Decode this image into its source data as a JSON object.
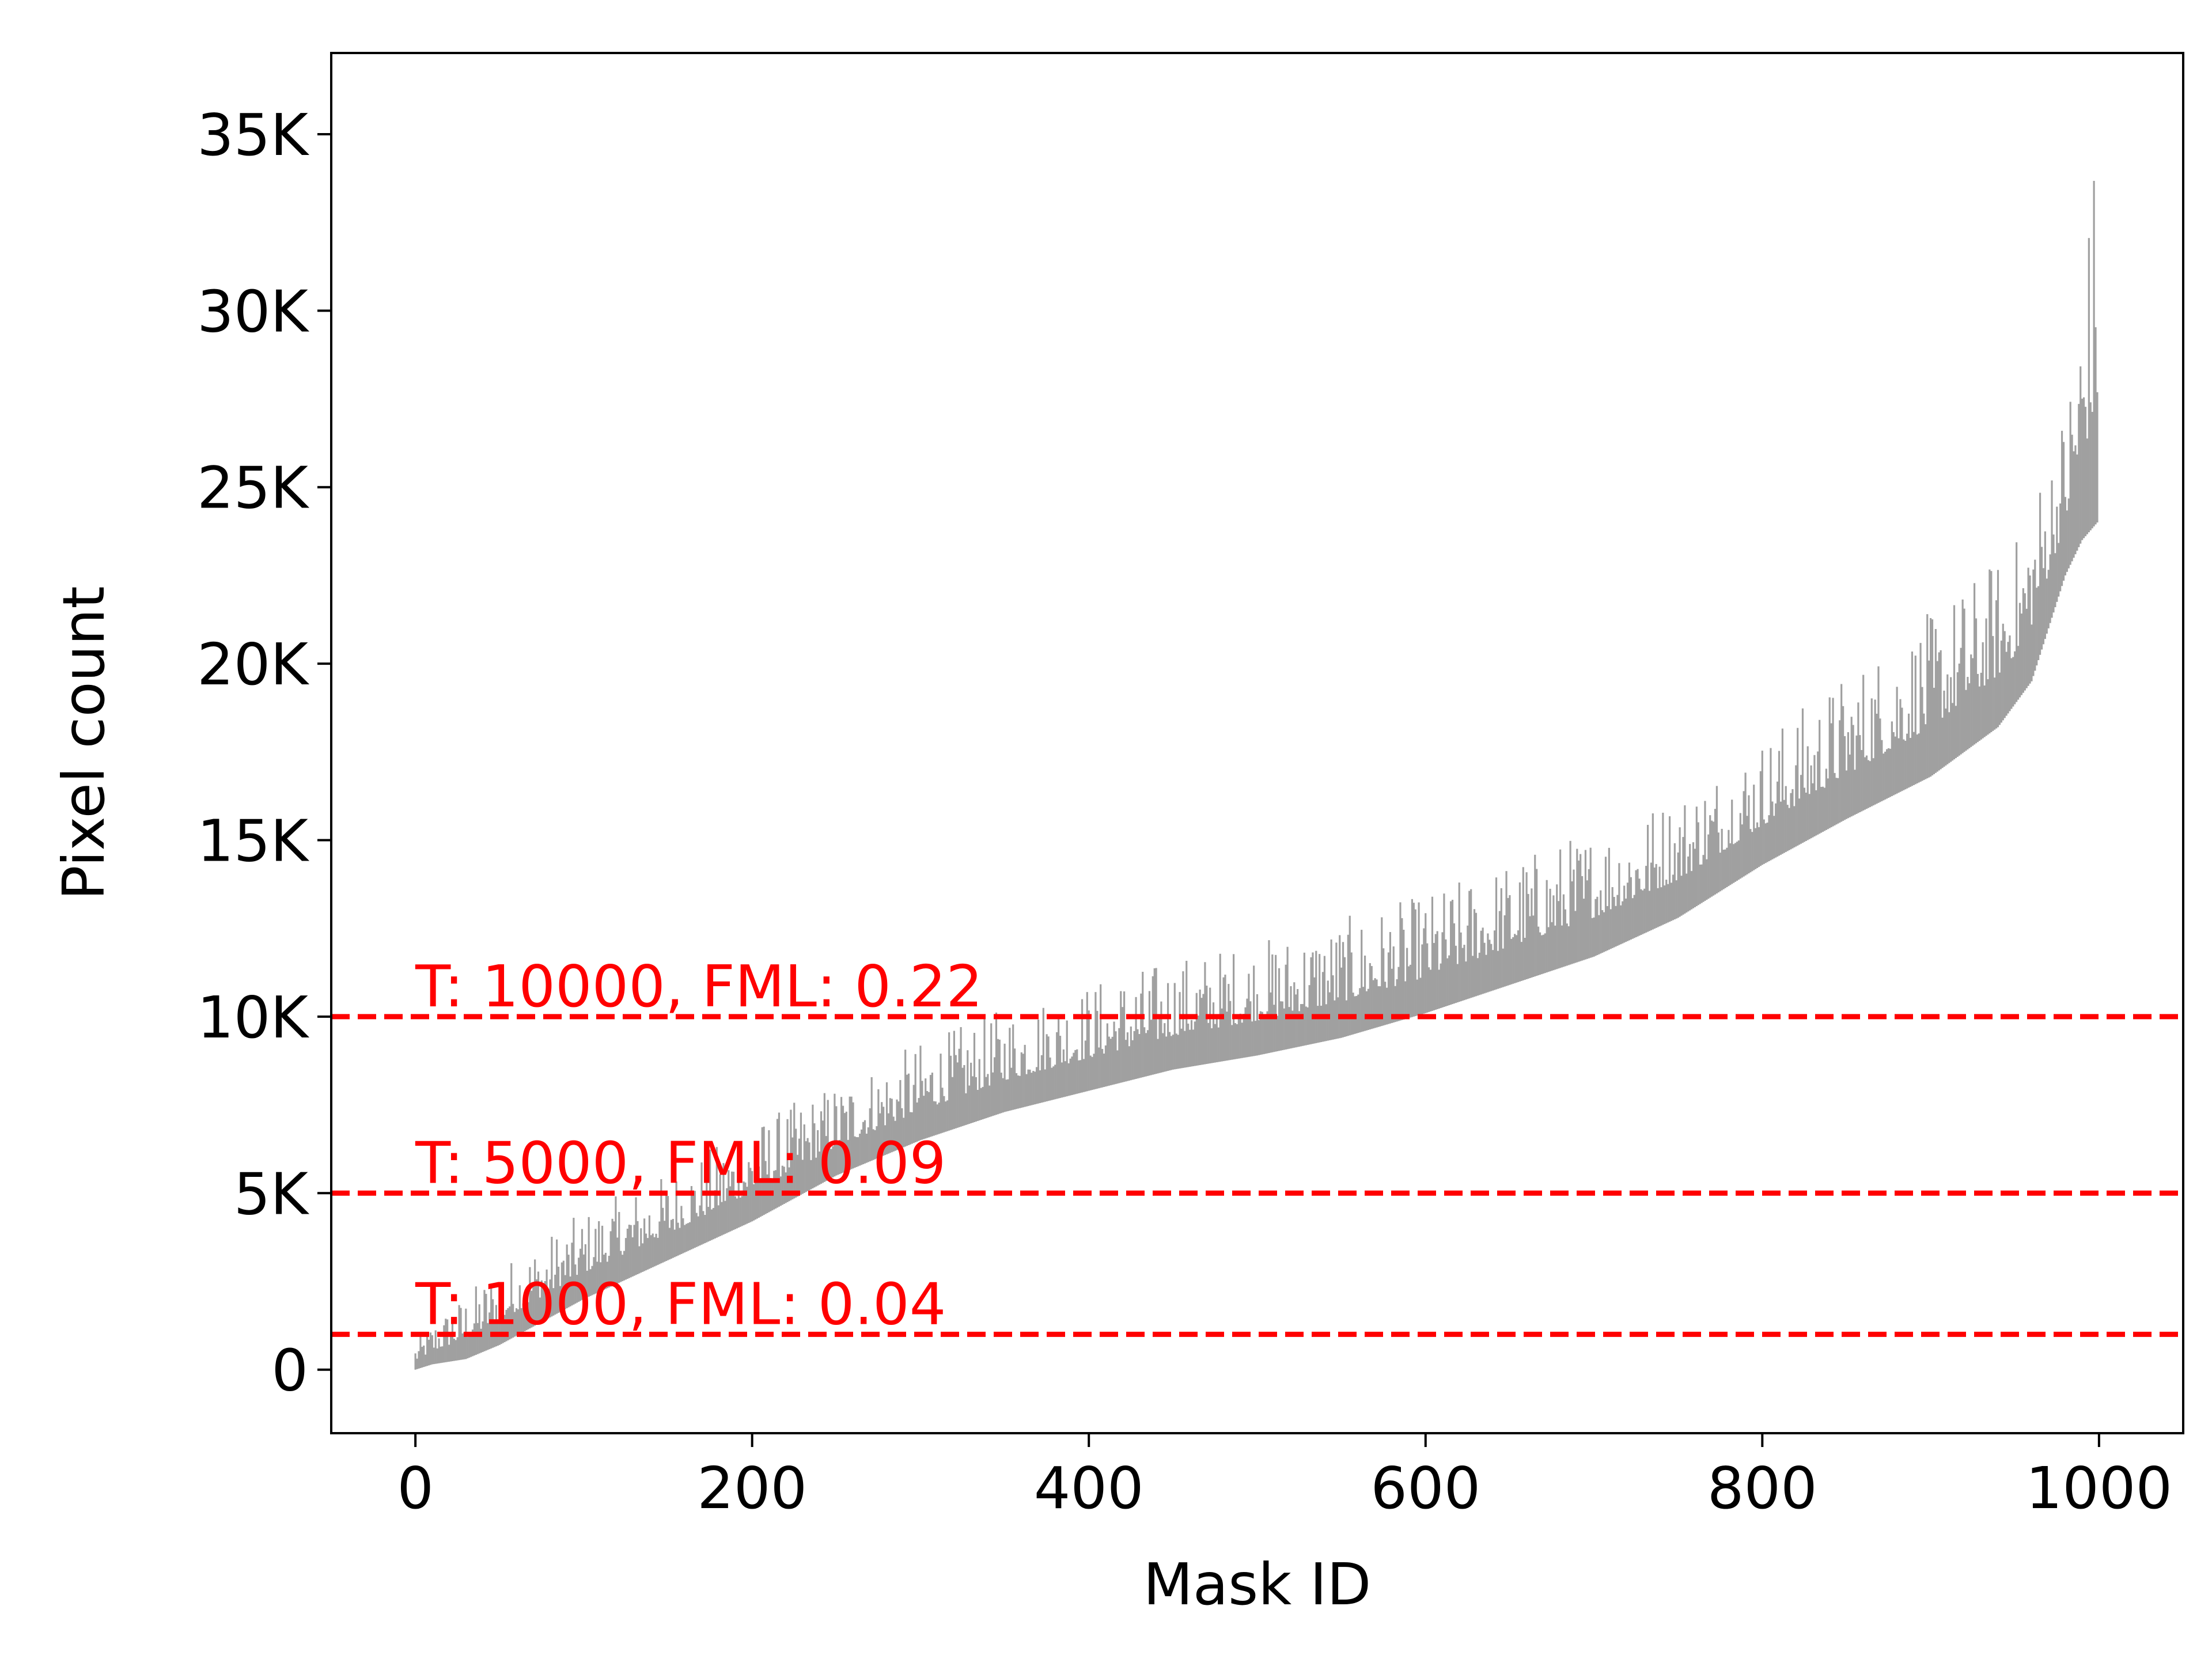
{
  "chart_data": {
    "type": "bar",
    "title": "",
    "xlabel": "Mask ID",
    "ylabel": "Pixel count",
    "xlim": [
      -50,
      1050
    ],
    "ylim": [
      -1800,
      37300
    ],
    "x_ticks": [
      0,
      200,
      400,
      600,
      800,
      1000
    ],
    "x_tick_labels": [
      "0",
      "200",
      "400",
      "600",
      "800",
      "1000"
    ],
    "y_ticks": [
      0,
      5000,
      10000,
      15000,
      20000,
      25000,
      30000,
      35000
    ],
    "y_tick_labels": [
      "0",
      "5K",
      "10K",
      "15K",
      "20K",
      "25K",
      "30K",
      "35K"
    ],
    "grid": false,
    "bar_color": "#a0a0a0",
    "n_bars": 1000,
    "sorted_min_curve": [
      [
        0,
        0
      ],
      [
        10,
        150
      ],
      [
        30,
        300
      ],
      [
        50,
        700
      ],
      [
        100,
        2000
      ],
      [
        150,
        3100
      ],
      [
        200,
        4200
      ],
      [
        250,
        5500
      ],
      [
        300,
        6500
      ],
      [
        350,
        7300
      ],
      [
        400,
        7900
      ],
      [
        450,
        8500
      ],
      [
        500,
        8900
      ],
      [
        550,
        9400
      ],
      [
        600,
        10100
      ],
      [
        650,
        10900
      ],
      [
        700,
        11700
      ],
      [
        750,
        12800
      ],
      [
        800,
        14300
      ],
      [
        850,
        15600
      ],
      [
        900,
        16800
      ],
      [
        940,
        18200
      ],
      [
        960,
        19500
      ],
      [
        970,
        21000
      ],
      [
        980,
        22500
      ],
      [
        990,
        23500
      ],
      [
        999,
        24000
      ]
    ],
    "max_values": [
      [
        0,
        800
      ],
      [
        10,
        1400
      ],
      [
        50,
        3000
      ],
      [
        100,
        4500
      ],
      [
        150,
        5600
      ],
      [
        200,
        7000
      ],
      [
        250,
        8200
      ],
      [
        300,
        9300
      ],
      [
        350,
        10300
      ],
      [
        400,
        11000
      ],
      [
        450,
        11700
      ],
      [
        500,
        12200
      ],
      [
        550,
        12800
      ],
      [
        600,
        13500
      ],
      [
        650,
        14500
      ],
      [
        700,
        15400
      ],
      [
        750,
        16400
      ],
      [
        800,
        18000
      ],
      [
        850,
        19800
      ],
      [
        900,
        21500
      ],
      [
        950,
        23500
      ],
      [
        980,
        27500
      ],
      [
        990,
        31200
      ],
      [
        999,
        35500
      ]
    ],
    "thresholds": [
      {
        "value": 1000,
        "label": "T: 1000, FML: 0.04"
      },
      {
        "value": 5000,
        "label": "T: 5000, FML: 0.09"
      },
      {
        "value": 10000,
        "label": "T: 10000, FML: 0.22"
      }
    ],
    "threshold_color": "#ff0000"
  }
}
